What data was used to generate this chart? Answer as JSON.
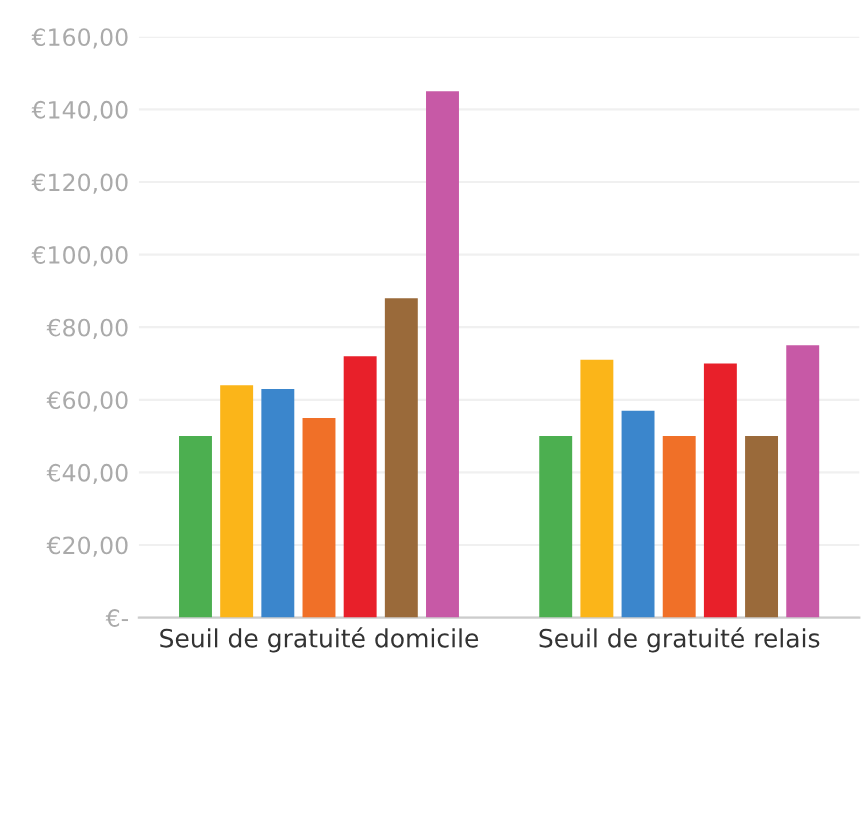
{
  "chart_data": {
    "type": "bar",
    "categories": [
      "Seuil de gratuité domicile",
      "Seuil de gratuité relais"
    ],
    "series": [
      {
        "color": "#4caf50",
        "values": [
          50,
          50
        ]
      },
      {
        "color": "#fbb519",
        "values": [
          64,
          71
        ]
      },
      {
        "color": "#3b86cc",
        "values": [
          63,
          57
        ]
      },
      {
        "color": "#f07028",
        "values": [
          55,
          50
        ]
      },
      {
        "color": "#e8202a",
        "values": [
          72,
          70
        ]
      },
      {
        "color": "#9a6a3a",
        "values": [
          88,
          50
        ]
      },
      {
        "color": "#c759a6",
        "values": [
          145,
          75
        ]
      }
    ],
    "ylim": [
      0,
      160
    ],
    "yticks": [
      {
        "value": 0,
        "label": "€-"
      },
      {
        "value": 20,
        "label": "€20,00"
      },
      {
        "value": 40,
        "label": "€40,00"
      },
      {
        "value": 60,
        "label": "€60,00"
      },
      {
        "value": 80,
        "label": "€80,00"
      },
      {
        "value": 100,
        "label": "€100,00"
      },
      {
        "value": 120,
        "label": "€120,00"
      },
      {
        "value": 140,
        "label": "€140,00"
      },
      {
        "value": 160,
        "label": "€160,00"
      }
    ],
    "grid": "y",
    "legend": false
  }
}
